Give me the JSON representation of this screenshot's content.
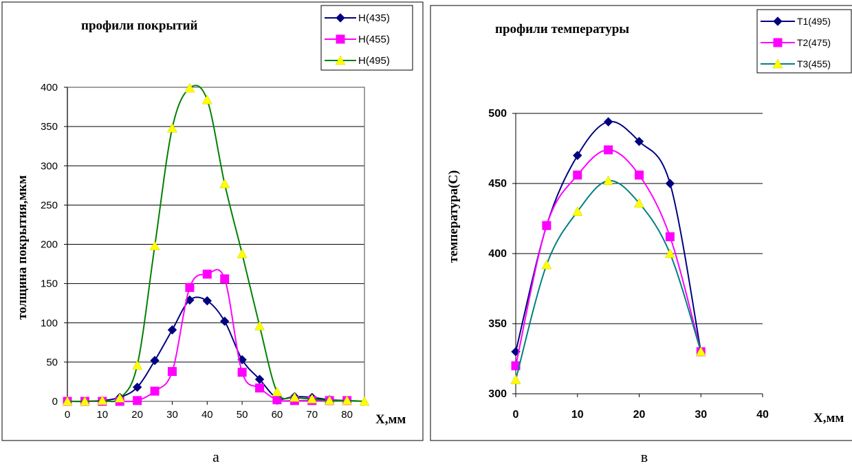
{
  "chart_data": [
    {
      "type": "line",
      "title": "профили покрытий",
      "xlabel": "X,мм",
      "ylabel": "толщина покрытия,мкм",
      "xlim": [
        0,
        85
      ],
      "ylim": [
        0,
        400
      ],
      "xticks": [
        "0",
        "10",
        "20",
        "30",
        "40",
        "50",
        "60",
        "70",
        "80"
      ],
      "yticks": [
        "0",
        "50",
        "100",
        "150",
        "200",
        "250",
        "300",
        "350",
        "400"
      ],
      "grid": "horizontal",
      "legend_position": "top-right",
      "caption": "а",
      "x": [
        0,
        5,
        10,
        15,
        20,
        25,
        30,
        35,
        40,
        45,
        50,
        55,
        60,
        65,
        70,
        75,
        80,
        85
      ],
      "series": [
        {
          "name": "H(435)",
          "color": "#000080",
          "marker": "diamond",
          "values": [
            0,
            0,
            1,
            5,
            18,
            52,
            91,
            129,
            128,
            102,
            53,
            28,
            4,
            6,
            5,
            2,
            1,
            null
          ]
        },
        {
          "name": "H(455)",
          "color": "#ff00ff",
          "marker": "square",
          "values": [
            0,
            0,
            0,
            0,
            1,
            13,
            38,
            145,
            162,
            156,
            37,
            17,
            2,
            1,
            1,
            1,
            1,
            null
          ]
        },
        {
          "name": "H(495)",
          "color": "#008000",
          "marker_color": "#ffff00",
          "marker": "triangle",
          "values": [
            0,
            0,
            1,
            4,
            46,
            198,
            348,
            399,
            384,
            277,
            188,
            96,
            12,
            5,
            3,
            1,
            1,
            0
          ]
        }
      ]
    },
    {
      "type": "line",
      "title": "профили температуры",
      "xlabel": "X,мм",
      "ylabel": "температура(С)",
      "xlim": [
        0,
        40
      ],
      "ylim": [
        300,
        500
      ],
      "xticks": [
        "0",
        "10",
        "20",
        "30",
        "40"
      ],
      "yticks": [
        "300",
        "350",
        "400",
        "450",
        "500"
      ],
      "grid": "horizontal",
      "legend_position": "top-right",
      "caption": "в",
      "x": [
        0,
        5,
        10,
        15,
        20,
        25,
        30
      ],
      "series": [
        {
          "name": "T1(495)",
          "color": "#000080",
          "marker": "diamond",
          "values": [
            330,
            420,
            470,
            494,
            480,
            450,
            330
          ]
        },
        {
          "name": "T2(475)",
          "color": "#ff00ff",
          "marker": "square",
          "values": [
            320,
            420,
            456,
            474,
            456,
            412,
            330
          ]
        },
        {
          "name": "T3(455)",
          "color": "#008080",
          "marker_color": "#ffff00",
          "marker": "triangle",
          "values": [
            310,
            392,
            430,
            452,
            436,
            400,
            330
          ]
        }
      ]
    }
  ]
}
